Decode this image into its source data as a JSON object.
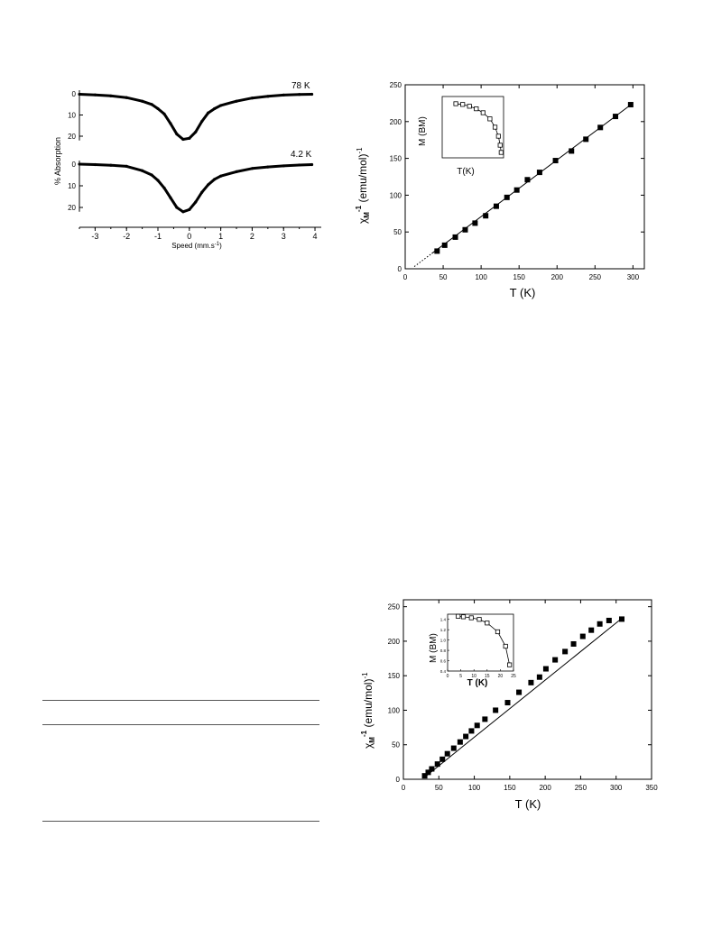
{
  "chart_data": [
    {
      "type": "line",
      "ylabel": "% Absorption",
      "xlabel": "Speed (mm.s",
      "xlabel_sup": "-1",
      "xlabel_end": ")",
      "xlim": [
        -3.5,
        4.2
      ],
      "xticks": [
        -3,
        -2,
        -1,
        0,
        1,
        2,
        3,
        4
      ],
      "panel_ylim": [
        0,
        25
      ],
      "series": [
        {
          "name": "78 K",
          "yticks": [
            0,
            10,
            20
          ],
          "x": [
            -3.5,
            -3.0,
            -2.5,
            -2.0,
            -1.5,
            -1.2,
            -1.0,
            -0.8,
            -0.6,
            -0.4,
            -0.2,
            0.0,
            0.2,
            0.4,
            0.6,
            0.8,
            1.0,
            1.5,
            2.0,
            2.5,
            3.0,
            3.5,
            3.9
          ],
          "values": [
            0.2,
            0.5,
            1.0,
            1.8,
            3.5,
            5.0,
            7.0,
            9.5,
            14.0,
            19.0,
            21.5,
            21.0,
            18.0,
            13.0,
            9.0,
            7.0,
            5.5,
            3.5,
            2.0,
            1.2,
            0.6,
            0.3,
            0.2
          ]
        },
        {
          "name": "4.2 K",
          "yticks": [
            0,
            10,
            20
          ],
          "x": [
            -3.5,
            -3.0,
            -2.5,
            -2.0,
            -1.5,
            -1.2,
            -1.0,
            -0.8,
            -0.6,
            -0.4,
            -0.2,
            0.0,
            0.2,
            0.4,
            0.6,
            0.8,
            1.0,
            1.5,
            2.0,
            2.5,
            3.0,
            3.5,
            3.9
          ],
          "values": [
            0.0,
            0.2,
            0.5,
            1.0,
            3.0,
            5.0,
            7.5,
            11.0,
            15.5,
            20.0,
            22.0,
            21.0,
            17.5,
            13.0,
            9.5,
            7.0,
            5.5,
            3.5,
            2.0,
            1.3,
            0.8,
            0.4,
            0.2
          ]
        }
      ]
    },
    {
      "type": "scatter",
      "ylabel": "χ",
      "ylabel_sub": "M",
      "ylabel_sup": "-1",
      "ylabel_rest": " (emu/mol)",
      "ylabel_sup2": "-1",
      "xlabel": "T (K)",
      "xlim": [
        0,
        315
      ],
      "ylim": [
        0,
        250
      ],
      "xticks": [
        0,
        50,
        100,
        150,
        200,
        250,
        300
      ],
      "yticks": [
        0,
        50,
        100,
        150,
        200,
        250
      ],
      "x": [
        42,
        52,
        66,
        79,
        92,
        106,
        120,
        134,
        147,
        161,
        177,
        198,
        219,
        238,
        257,
        277,
        297
      ],
      "values": [
        24,
        32,
        43,
        53,
        62,
        72,
        85,
        97,
        107,
        121,
        131,
        147,
        160,
        176,
        192,
        207,
        223
      ],
      "fit": {
        "x": [
          12,
          300
        ],
        "y": [
          3,
          225
        ],
        "dotted_until": 35
      },
      "inset": {
        "ylabel": "M (BM)",
        "xlabel": "T(K)",
        "x": [
          4,
          6,
          8,
          10,
          12,
          14,
          15.5,
          16.5,
          17,
          17.3
        ],
        "values": [
          1.7,
          1.68,
          1.63,
          1.56,
          1.45,
          1.28,
          1.05,
          0.8,
          0.55,
          0.35
        ]
      }
    },
    {
      "type": "scatter",
      "ylabel": "χ",
      "ylabel_sub": "M",
      "ylabel_sup": "-1",
      "ylabel_rest": " (emu/mol)",
      "ylabel_sup2": "-1",
      "xlabel": "T (K)",
      "xlim": [
        0,
        350
      ],
      "ylim": [
        0,
        260
      ],
      "xticks": [
        0,
        50,
        100,
        150,
        200,
        250,
        300,
        350
      ],
      "yticks": [
        0,
        50,
        100,
        150,
        200,
        250
      ],
      "x": [
        30,
        35,
        40,
        48,
        55,
        62,
        71,
        80,
        88,
        96,
        104,
        115,
        130,
        147,
        163,
        180,
        192,
        201,
        214,
        228,
        240,
        253,
        265,
        277,
        290,
        308
      ],
      "values": [
        5,
        10,
        15,
        22,
        29,
        37,
        45,
        54,
        62,
        70,
        78,
        87,
        100,
        111,
        126,
        140,
        148,
        160,
        173,
        185,
        196,
        207,
        216,
        225,
        230,
        232
      ],
      "fit": {
        "x": [
          30,
          308
        ],
        "y": [
          3,
          233
        ]
      },
      "inset": {
        "ylabel": "M (BM)",
        "xlabel": "T (K)",
        "xlim": [
          0,
          25
        ],
        "xticks": [
          0,
          5,
          10,
          15,
          20,
          25
        ],
        "ylim": [
          0.4,
          1.5
        ],
        "yticks": [
          0.4,
          0.6,
          0.8,
          1.0,
          1.2,
          1.4
        ],
        "x": [
          4,
          6,
          9,
          12,
          15,
          19,
          22,
          23.5
        ],
        "values": [
          1.46,
          1.45,
          1.43,
          1.4,
          1.33,
          1.16,
          0.88,
          0.52
        ]
      }
    }
  ]
}
